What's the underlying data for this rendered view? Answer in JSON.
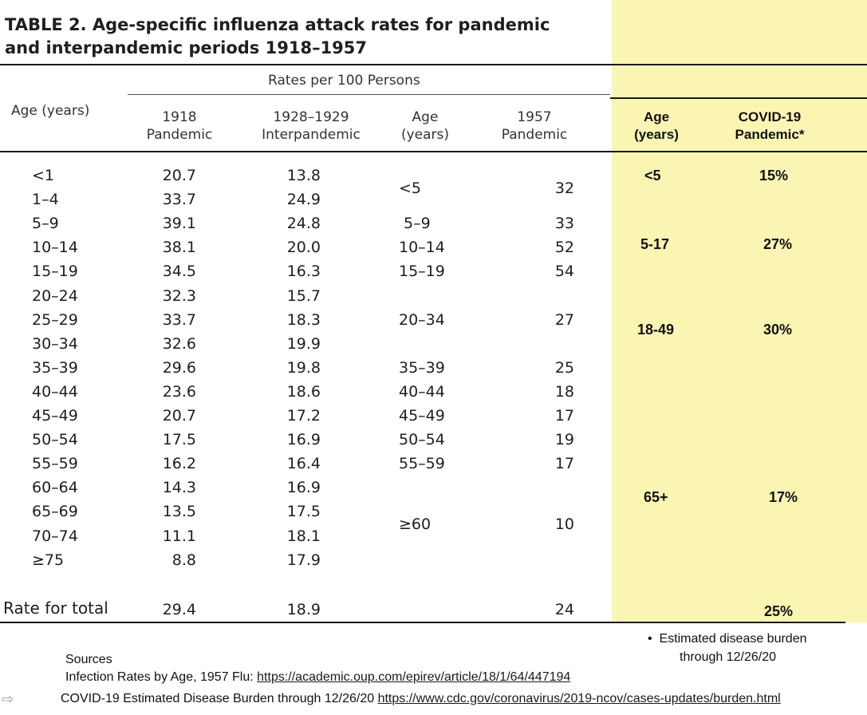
{
  "title": {
    "line1": "TABLE 2.   Age-specific influenza attack rates for pandemic",
    "line2": "and interpandemic periods 1918–1957"
  },
  "headers": {
    "rates_per_100": "Rates per 100 Persons",
    "age_years": "Age (years)",
    "col1918": [
      "1918",
      "Pandemic"
    ],
    "col1928": [
      "1928–1929",
      "Interpandemic"
    ],
    "age1957": [
      "Age",
      "(years)"
    ],
    "col1957": [
      "1957",
      "Pandemic"
    ],
    "covid_age": [
      "Age",
      "(years)"
    ],
    "covid_col": [
      "COVID-19",
      "Pandemic*"
    ]
  },
  "rows": [
    {
      "age": "<1",
      "v1918": "20.7",
      "v1928": "13.8"
    },
    {
      "age": "1–4",
      "v1918": "33.7",
      "v1928": "24.9"
    },
    {
      "age": "5–9",
      "v1918": "39.1",
      "v1928": "24.8"
    },
    {
      "age": "10–14",
      "v1918": "38.1",
      "v1928": "20.0"
    },
    {
      "age": "15–19",
      "v1918": "34.5",
      "v1928": "16.3"
    },
    {
      "age": "20–24",
      "v1918": "32.3",
      "v1928": "15.7"
    },
    {
      "age": "25–29",
      "v1918": "33.7",
      "v1928": "18.3"
    },
    {
      "age": "30–34",
      "v1918": "32.6",
      "v1928": "19.9"
    },
    {
      "age": "35–39",
      "v1918": "29.6",
      "v1928": "19.8"
    },
    {
      "age": "40–44",
      "v1918": "23.6",
      "v1928": "18.6"
    },
    {
      "age": "45–49",
      "v1918": "20.7",
      "v1928": "17.2"
    },
    {
      "age": "50–54",
      "v1918": "17.5",
      "v1928": "16.9"
    },
    {
      "age": "55–59",
      "v1918": "16.2",
      "v1928": "16.4"
    },
    {
      "age": "60–64",
      "v1918": "14.3",
      "v1928": "16.9"
    },
    {
      "age": "65–69",
      "v1918": "13.5",
      "v1928": "17.5"
    },
    {
      "age": "70–74",
      "v1918": "11.1",
      "v1928": "18.1"
    },
    {
      "age": "≥75",
      "v1918": "8.8",
      "v1928": "17.9"
    }
  ],
  "rows1957": [
    {
      "age": "<5",
      "value": "32"
    },
    {
      "age": "5–9",
      "value": "33"
    },
    {
      "age": "10–14",
      "value": "52"
    },
    {
      "age": "15–19",
      "value": "54"
    },
    {
      "age": "20–34",
      "value": "27"
    },
    {
      "age": "35–39",
      "value": "25"
    },
    {
      "age": "40–44",
      "value": "18"
    },
    {
      "age": "45–49",
      "value": "17"
    },
    {
      "age": "50–54",
      "value": "19"
    },
    {
      "age": "55–59",
      "value": "17"
    },
    {
      "age": "≥60",
      "value": "10"
    }
  ],
  "covid_rows": [
    {
      "age": "<5",
      "value": "15%"
    },
    {
      "age": "5-17",
      "value": "27%"
    },
    {
      "age": "18-49",
      "value": "30%"
    },
    {
      "age": "65+",
      "value": "17%"
    }
  ],
  "total": {
    "label": "Rate for total",
    "v1918": "29.4",
    "v1928": "18.9",
    "v1957": "24",
    "covid": "25%"
  },
  "footnote": {
    "line1": "Estimated disease burden",
    "line2": "through 12/26/20"
  },
  "sources": {
    "label": "Sources",
    "flu_prefix": "Infection Rates by Age, 1957 Flu: ",
    "flu_link": "https://academic.oup.com/epirev/article/18/1/64/447194",
    "covid_prefix": "COVID-19 Estimated Disease Burden through 12/26/20  ",
    "covid_link": "https://www.cdc.gov/coronavirus/2019-ncov/cases-updates/burden.html"
  }
}
